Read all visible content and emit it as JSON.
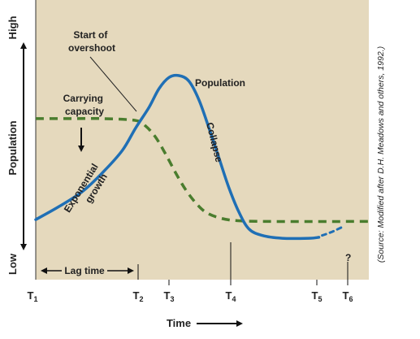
{
  "chart_data": {
    "type": "line",
    "title": "",
    "xlabel": "Time",
    "ylabel": "Population",
    "y_axis_high_label": "High",
    "y_axis_low_label": "Low",
    "x_tick_labels": [
      {
        "base": "T",
        "sub": "1"
      },
      {
        "base": "T",
        "sub": "2"
      },
      {
        "base": "T",
        "sub": "3"
      },
      {
        "base": "T",
        "sub": "4"
      },
      {
        "base": "T",
        "sub": "5"
      },
      {
        "base": "T",
        "sub": "6"
      }
    ],
    "series": [
      {
        "name": "Population",
        "style": "solid",
        "color": "#1f6fb5",
        "points": [
          [
            0,
            0.13
          ],
          [
            0.07,
            0.2
          ],
          [
            0.14,
            0.28
          ],
          [
            0.2,
            0.38
          ],
          [
            0.26,
            0.5
          ],
          [
            0.3,
            0.62
          ],
          [
            0.34,
            0.73
          ],
          [
            0.37,
            0.83
          ],
          [
            0.4,
            0.89
          ],
          [
            0.43,
            0.9
          ],
          [
            0.46,
            0.87
          ],
          [
            0.49,
            0.77
          ],
          [
            0.52,
            0.62
          ],
          [
            0.55,
            0.46
          ],
          [
            0.58,
            0.3
          ],
          [
            0.61,
            0.17
          ],
          [
            0.64,
            0.08
          ],
          [
            0.68,
            0.045
          ],
          [
            0.74,
            0.03
          ],
          [
            0.82,
            0.03
          ],
          [
            0.85,
            0.035
          ]
        ]
      },
      {
        "name": "Carrying capacity",
        "style": "dashed",
        "color": "#4a7d2e",
        "points": [
          [
            0,
            0.67
          ],
          [
            0.1,
            0.67
          ],
          [
            0.2,
            0.67
          ],
          [
            0.3,
            0.66
          ],
          [
            0.33,
            0.63
          ],
          [
            0.36,
            0.57
          ],
          [
            0.39,
            0.48
          ],
          [
            0.42,
            0.38
          ],
          [
            0.45,
            0.29
          ],
          [
            0.48,
            0.22
          ],
          [
            0.51,
            0.17
          ],
          [
            0.55,
            0.14
          ],
          [
            0.6,
            0.125
          ],
          [
            0.7,
            0.12
          ],
          [
            1.0,
            0.12
          ]
        ]
      },
      {
        "name": "",
        "style": "dotted-uncertain",
        "color": "#1f6fb5",
        "points": [
          [
            0.86,
            0.045
          ],
          [
            0.89,
            0.065
          ],
          [
            0.92,
            0.09
          ]
        ]
      }
    ],
    "annotations": {
      "population": "Population",
      "carrying_capacity": [
        "Carrying",
        "capacity"
      ],
      "start_of_overshoot": [
        "Start of",
        "overshoot"
      ],
      "exponential_growth": [
        "Exponential",
        "growth"
      ],
      "collapse": "Collapse",
      "lag_time": "Lag time",
      "question_mark": "?"
    },
    "source": "(Source: Modified after D.H. Meadows and others, 1992.)",
    "colors": {
      "plot_background": "#e5d9bd",
      "population_line": "#1f6fb5",
      "carrying_capacity_line": "#4a7d2e"
    }
  }
}
